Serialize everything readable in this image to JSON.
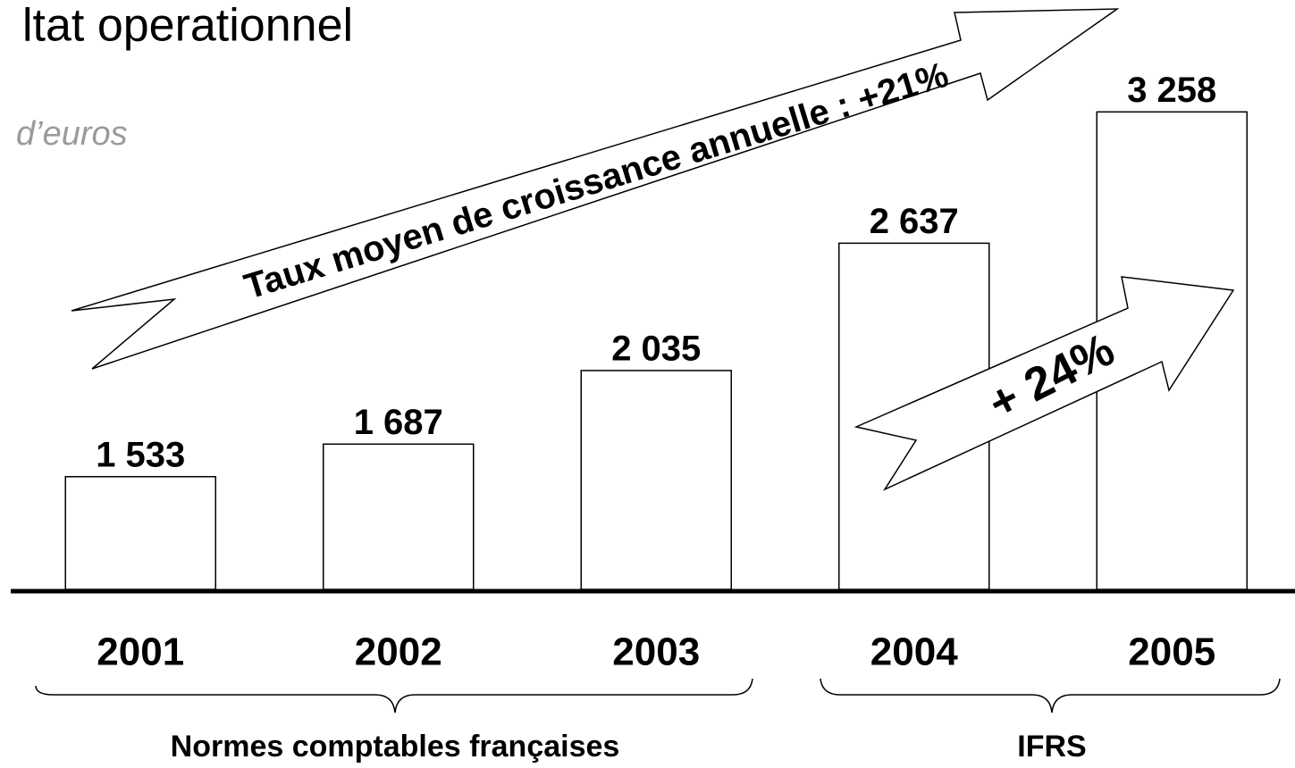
{
  "chart_data": {
    "type": "bar",
    "title": "ltat operationnel",
    "subtitle": "d’euros",
    "categories": [
      "2001",
      "2002",
      "2003",
      "2004",
      "2005"
    ],
    "values": [
      1533,
      1687,
      2035,
      2637,
      3258
    ],
    "value_labels": [
      "1 533",
      "1 687",
      "2 035",
      "2 637",
      "3 258"
    ],
    "color": "#ffffff",
    "ylim": [
      1000,
      3500
    ],
    "annotations": [
      "Taux moyen de croissance annuelle : +21%",
      "+ 24%"
    ],
    "group_labels": [
      "Normes comptables françaises",
      "IFRS"
    ]
  }
}
